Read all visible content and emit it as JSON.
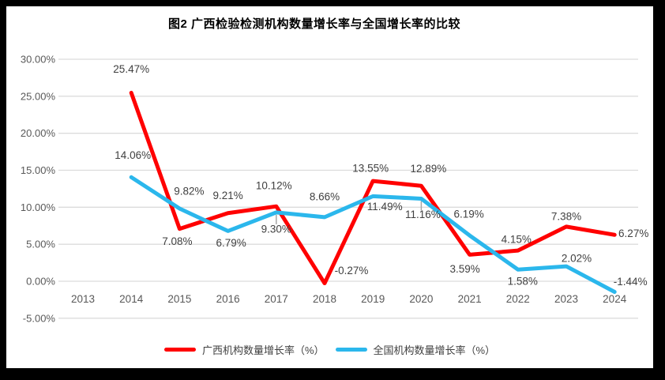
{
  "chart_data": {
    "type": "line",
    "title": "图2 广西检验检测机构数量增长率与全国增长率的比较",
    "categories": [
      "2013",
      "2014",
      "2015",
      "2016",
      "2017",
      "2018",
      "2019",
      "2020",
      "2021",
      "2022",
      "2023",
      "2024"
    ],
    "series": [
      {
        "name": "广西机构数量增长率（%）",
        "color": "#ff0000",
        "values": [
          null,
          25.47,
          7.08,
          9.21,
          10.12,
          -0.27,
          13.55,
          12.89,
          3.59,
          4.15,
          7.38,
          6.27
        ]
      },
      {
        "name": "全国机构数量增长率（%）",
        "color": "#2bb7ec",
        "values": [
          null,
          14.06,
          9.82,
          6.79,
          9.3,
          8.66,
          11.49,
          11.16,
          6.19,
          1.58,
          2.02,
          -1.44
        ]
      }
    ],
    "y_ticks": [
      "30.00%",
      "25.00%",
      "20.00%",
      "15.00%",
      "10.00%",
      "5.00%",
      "0.00%",
      "-5.00%"
    ],
    "y_tick_values": [
      30,
      25,
      20,
      15,
      10,
      5,
      0,
      -5
    ],
    "ylim": [
      -5,
      30
    ],
    "grid": true,
    "legend_position": "bottom",
    "colors": {
      "gridline": "#dcdcdc",
      "axis_text": "#595959",
      "data_label_text": "#404040",
      "leader_line": "#a6a6a6",
      "frame": "#000000"
    }
  }
}
